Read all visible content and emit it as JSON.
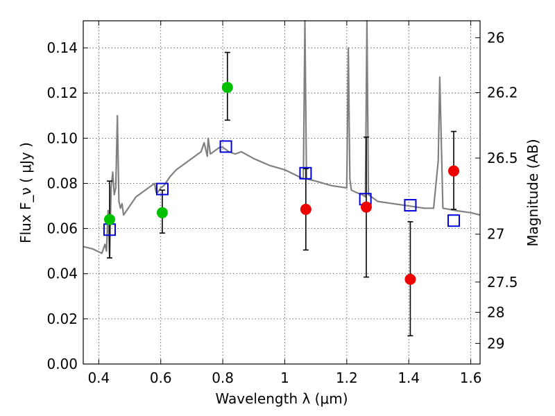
{
  "chart_data": {
    "type": "scatter",
    "xlabel": "Wavelength  λ (μm)",
    "ylabel": "Flux  F_ν  ( μJy )",
    "y2label": "Magnitude (AB)",
    "xlim": [
      0.35,
      1.63
    ],
    "ylim": [
      0.0,
      0.152
    ],
    "x_ticks": [
      {
        "value": 0.4,
        "label": "0.4"
      },
      {
        "value": 0.6,
        "label": "0.6"
      },
      {
        "value": 0.8,
        "label": "0.8"
      },
      {
        "value": 1.0,
        "label": "1"
      },
      {
        "value": 1.2,
        "label": "1.2"
      },
      {
        "value": 1.4,
        "label": "1.4"
      },
      {
        "value": 1.6,
        "label": "1.6"
      }
    ],
    "y_ticks": [
      {
        "value": 0.0,
        "label": "0.00"
      },
      {
        "value": 0.02,
        "label": "0.02"
      },
      {
        "value": 0.04,
        "label": "0.04"
      },
      {
        "value": 0.06,
        "label": "0.06"
      },
      {
        "value": 0.08,
        "label": "0.08"
      },
      {
        "value": 0.1,
        "label": "0.10"
      },
      {
        "value": 0.12,
        "label": "0.12"
      },
      {
        "value": 0.14,
        "label": "0.14"
      }
    ],
    "y2_ticks": [
      {
        "label": "26",
        "flux": 0.1445
      },
      {
        "label": "26.2",
        "flux": 0.1202
      },
      {
        "label": "26.5",
        "flux": 0.0912
      },
      {
        "label": "27",
        "flux": 0.0575
      },
      {
        "label": "27.5",
        "flux": 0.0363
      },
      {
        "label": "28",
        "flux": 0.0229
      },
      {
        "label": "29",
        "flux": 0.0091
      }
    ],
    "grid": true,
    "colors": {
      "spectrum": "#808080",
      "green_points": "#00c000",
      "red_points": "#ee0000",
      "model_squares": "#0000dd",
      "error_bars": "#000000"
    },
    "series": [
      {
        "kind": "spectrum_line",
        "x": [
          0.35,
          0.38,
          0.41,
          0.42,
          0.425,
          0.43,
          0.435,
          0.44,
          0.445,
          0.45,
          0.455,
          0.46,
          0.465,
          0.47,
          0.475,
          0.48,
          0.49,
          0.5,
          0.51,
          0.52,
          0.53,
          0.54,
          0.55,
          0.56,
          0.57,
          0.58,
          0.585,
          0.59,
          0.6,
          0.61,
          0.62,
          0.63,
          0.65,
          0.67,
          0.68,
          0.69,
          0.7,
          0.72,
          0.73,
          0.74,
          0.75,
          0.753,
          0.76,
          0.78,
          0.79,
          0.8,
          0.82,
          0.84,
          0.86,
          0.9,
          0.95,
          1.0,
          1.03,
          1.06,
          1.065,
          1.07,
          1.1,
          1.15,
          1.2,
          1.205,
          1.21,
          1.215,
          1.23,
          1.25,
          1.26,
          1.265,
          1.27,
          1.28,
          1.3,
          1.35,
          1.4,
          1.45,
          1.48,
          1.495,
          1.5,
          1.51,
          1.55,
          1.6,
          1.63
        ],
        "y": [
          0.052,
          0.051,
          0.049,
          0.053,
          0.05,
          0.068,
          0.047,
          0.078,
          0.085,
          0.075,
          0.078,
          0.11,
          0.072,
          0.069,
          0.071,
          0.066,
          0.068,
          0.07,
          0.072,
          0.074,
          0.075,
          0.076,
          0.077,
          0.078,
          0.079,
          0.08,
          0.076,
          0.076,
          0.078,
          0.079,
          0.081,
          0.083,
          0.086,
          0.088,
          0.089,
          0.09,
          0.091,
          0.093,
          0.094,
          0.098,
          0.092,
          0.1,
          0.093,
          0.095,
          0.096,
          0.096,
          0.094,
          0.093,
          0.094,
          0.091,
          0.088,
          0.086,
          0.084,
          0.082,
          0.152,
          0.082,
          0.081,
          0.079,
          0.078,
          0.14,
          0.082,
          0.077,
          0.076,
          0.075,
          0.074,
          0.152,
          0.075,
          0.074,
          0.072,
          0.071,
          0.07,
          0.069,
          0.069,
          0.09,
          0.127,
          0.069,
          0.068,
          0.067,
          0.066
        ]
      },
      {
        "kind": "observed",
        "name": "",
        "color": "#00c000",
        "points": [
          {
            "x": 0.435,
            "y": 0.064,
            "err_low": 0.047,
            "err_high": 0.081
          },
          {
            "x": 0.605,
            "y": 0.067,
            "err_low": 0.058,
            "err_high": 0.077
          },
          {
            "x": 0.815,
            "y": 0.1225,
            "err_low": 0.108,
            "err_high": 0.138
          }
        ]
      },
      {
        "kind": "observed",
        "name": "",
        "color": "#ee0000",
        "points": [
          {
            "x": 1.068,
            "y": 0.0685,
            "err_low": 0.0505,
            "err_high": 0.0865
          },
          {
            "x": 1.263,
            "y": 0.0695,
            "err_low": 0.0385,
            "err_high": 0.1005
          },
          {
            "x": 1.405,
            "y": 0.0375,
            "err_low": 0.0125,
            "err_high": 0.063
          },
          {
            "x": 1.545,
            "y": 0.0855,
            "err_low": 0.0685,
            "err_high": 0.103
          }
        ]
      },
      {
        "kind": "model_squares",
        "name": "",
        "color": "#0000dd",
        "points": [
          {
            "x": 0.435,
            "y": 0.0595
          },
          {
            "x": 0.605,
            "y": 0.0775
          },
          {
            "x": 0.81,
            "y": 0.0963
          },
          {
            "x": 1.067,
            "y": 0.0845
          },
          {
            "x": 1.26,
            "y": 0.073
          },
          {
            "x": 1.405,
            "y": 0.0703
          },
          {
            "x": 1.545,
            "y": 0.0635
          }
        ]
      }
    ]
  }
}
